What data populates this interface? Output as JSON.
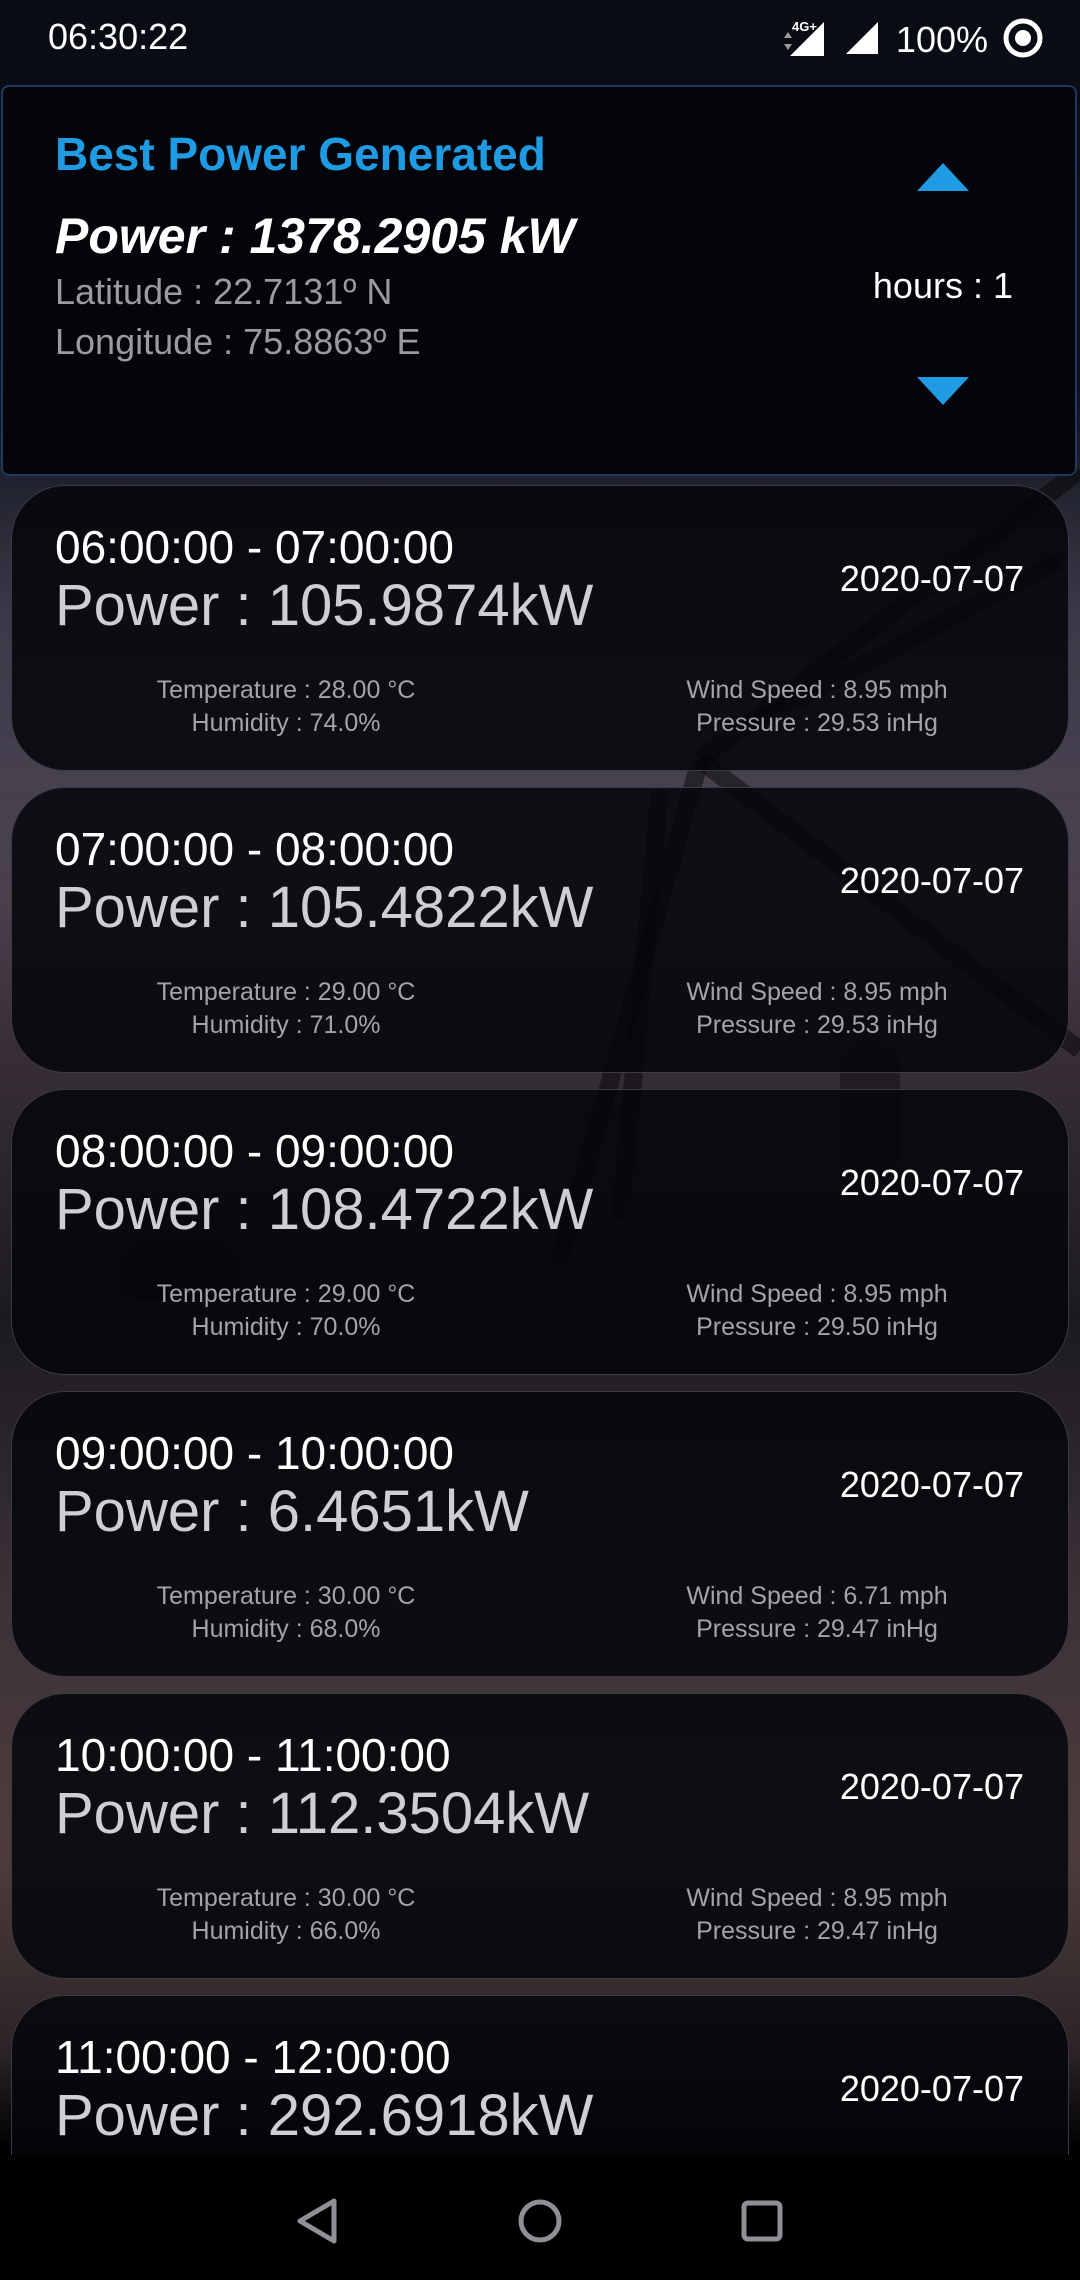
{
  "status_bar": {
    "time": "06:30:22",
    "network": "4G+",
    "battery": "100%",
    "icons": [
      "network-4g-signal-icon",
      "signal-icon",
      "data-saver-icon"
    ]
  },
  "best": {
    "title": "Best Power Generated",
    "power": "Power : 1378.2905 kW",
    "latitude": "Latitude : 22.7131º N",
    "longitude": "Longitude : 75.8863º E",
    "hours": "hours : 1",
    "accent_color": "#1e9be3",
    "icons": [
      "arrow-up-icon",
      "arrow-down-icon"
    ]
  },
  "entries": [
    {
      "time_range": "06:00:00 - 07:00:00",
      "power": "Power : 105.9874kW",
      "date": "2020-07-07",
      "temperature": "Temperature : 28.00 °C",
      "humidity": "Humidity : 74.0%",
      "wind_speed": "Wind Speed : 8.95 mph",
      "pressure": "Pressure : 29.53 inHg"
    },
    {
      "time_range": "07:00:00 - 08:00:00",
      "power": "Power : 105.4822kW",
      "date": "2020-07-07",
      "temperature": "Temperature : 29.00 °C",
      "humidity": "Humidity : 71.0%",
      "wind_speed": "Wind Speed : 8.95 mph",
      "pressure": "Pressure : 29.53 inHg"
    },
    {
      "time_range": "08:00:00 - 09:00:00",
      "power": "Power : 108.4722kW",
      "date": "2020-07-07",
      "temperature": "Temperature : 29.00 °C",
      "humidity": "Humidity : 70.0%",
      "wind_speed": "Wind Speed : 8.95 mph",
      "pressure": "Pressure : 29.50 inHg"
    },
    {
      "time_range": "09:00:00 - 10:00:00",
      "power": "Power : 6.4651kW",
      "date": "2020-07-07",
      "temperature": "Temperature : 30.00 °C",
      "humidity": "Humidity : 68.0%",
      "wind_speed": "Wind Speed : 6.71 mph",
      "pressure": "Pressure : 29.47 inHg"
    },
    {
      "time_range": "10:00:00 - 11:00:00",
      "power": "Power : 112.3504kW",
      "date": "2020-07-07",
      "temperature": "Temperature : 30.00 °C",
      "humidity": "Humidity : 66.0%",
      "wind_speed": "Wind Speed : 8.95 mph",
      "pressure": "Pressure : 29.47 inHg"
    },
    {
      "time_range": "11:00:00 - 12:00:00",
      "power": "Power : 292.6918kW",
      "date": "2020-07-07",
      "temperature": "",
      "humidity": "",
      "wind_speed": "",
      "pressure": ""
    }
  ],
  "nav_bar": {
    "icons": [
      "back-icon",
      "home-icon",
      "recent-apps-icon"
    ]
  }
}
